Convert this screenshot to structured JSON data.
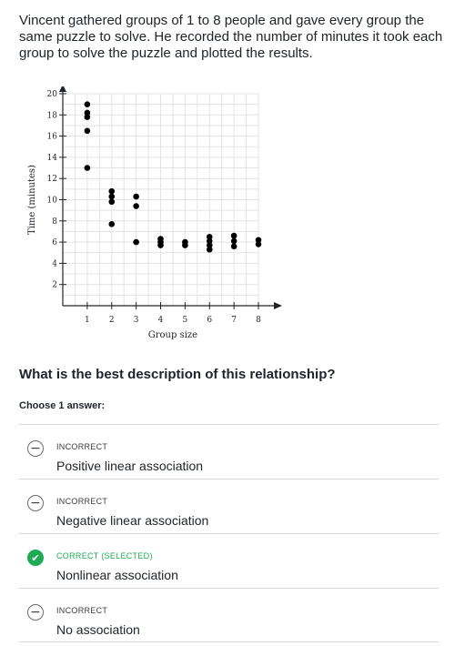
{
  "problem": {
    "text": "Vincent gathered groups of 1 to 8 people and gave every group the same puzzle to solve. He recorded the number of minutes it took each group to solve the puzzle and plotted the results."
  },
  "question": "What is the best description of this relationship?",
  "choose_label": "Choose 1 answer:",
  "choices": [
    {
      "status": "INCORRECT",
      "text": "Positive linear association",
      "correct": false
    },
    {
      "status": "INCORRECT",
      "text": "Negative linear association",
      "correct": false
    },
    {
      "status": "CORRECT (SELECTED)",
      "text": "Nonlinear association",
      "correct": true
    },
    {
      "status": "INCORRECT",
      "text": "No association",
      "correct": false
    }
  ],
  "colors": {
    "correct": "#1fab54",
    "text": "#21242c",
    "grid": "#e3e3e3",
    "axis": "#21242c"
  },
  "icons": {
    "incorrect": "minus-circle-icon",
    "correct": "checkmark-circle-icon"
  },
  "chart_data": {
    "type": "scatter",
    "xlabel": "Group size",
    "ylabel": "Time (minutes)",
    "xlim": [
      0,
      8
    ],
    "ylim": [
      0,
      20
    ],
    "xticks": [
      1,
      2,
      3,
      4,
      5,
      6,
      7,
      8
    ],
    "yticks": [
      2,
      4,
      6,
      8,
      10,
      12,
      14,
      16,
      18,
      20
    ],
    "grid": true,
    "points": [
      {
        "x": 1,
        "y": 19
      },
      {
        "x": 1,
        "y": 18.2
      },
      {
        "x": 1,
        "y": 17.8
      },
      {
        "x": 1,
        "y": 16.5
      },
      {
        "x": 1,
        "y": 13
      },
      {
        "x": 2,
        "y": 10.8
      },
      {
        "x": 2,
        "y": 10.3
      },
      {
        "x": 2,
        "y": 9.8
      },
      {
        "x": 2,
        "y": 7.7
      },
      {
        "x": 3,
        "y": 10.3
      },
      {
        "x": 3,
        "y": 9.4
      },
      {
        "x": 3,
        "y": 6
      },
      {
        "x": 4,
        "y": 6.3
      },
      {
        "x": 4,
        "y": 6
      },
      {
        "x": 4,
        "y": 5.7
      },
      {
        "x": 5,
        "y": 6
      },
      {
        "x": 5,
        "y": 5.7
      },
      {
        "x": 6,
        "y": 6.5
      },
      {
        "x": 6,
        "y": 6.1
      },
      {
        "x": 6,
        "y": 5.7
      },
      {
        "x": 6,
        "y": 5.3
      },
      {
        "x": 7,
        "y": 6.6
      },
      {
        "x": 7,
        "y": 6.1
      },
      {
        "x": 7,
        "y": 5.6
      },
      {
        "x": 8,
        "y": 6.2
      },
      {
        "x": 8,
        "y": 5.8
      }
    ]
  }
}
